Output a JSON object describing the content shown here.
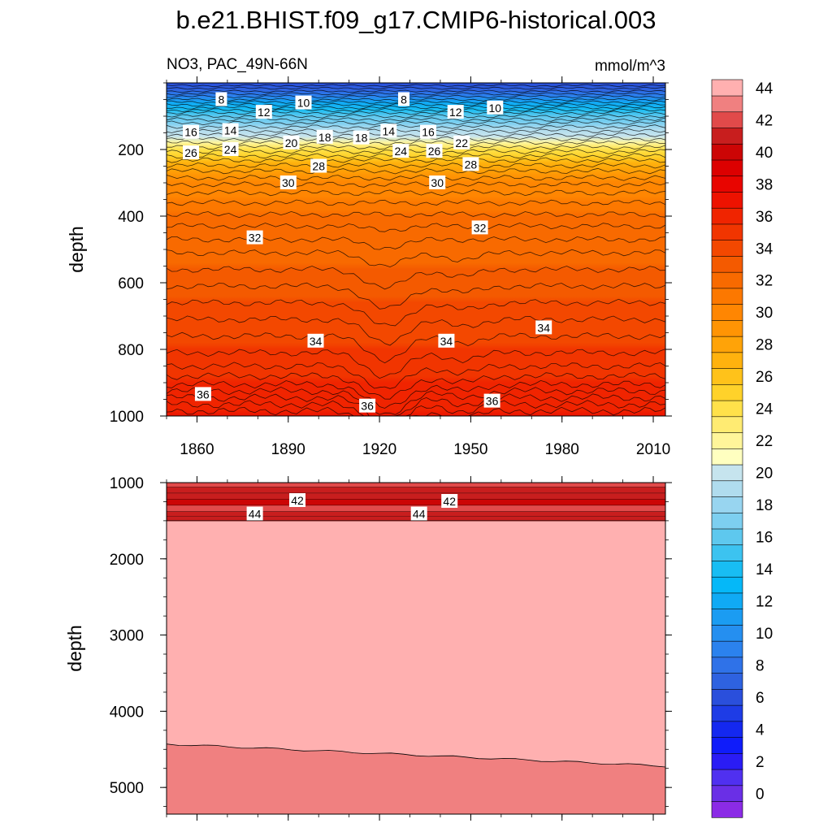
{
  "chart_data": {
    "type": "heatmap",
    "title": "b.e21.BHIST.f09_g17.CMIP6-historical.003",
    "subtitle_left": "NO3, PAC_49N-66N",
    "subtitle_right": "mmol/m^3",
    "xlabel": "",
    "ylabel": "depth",
    "xlim": [
      1850,
      2014
    ],
    "x_ticks": [
      1860,
      1890,
      1920,
      1950,
      1980,
      2010
    ],
    "x_tick_labels": [
      "1860",
      "1890",
      "1920",
      "1950",
      "1980",
      "2010"
    ],
    "colorbar": {
      "min": -1,
      "max": 46,
      "step": 1,
      "tick_values": [
        0,
        2,
        4,
        6,
        8,
        10,
        12,
        14,
        16,
        18,
        20,
        22,
        24,
        26,
        28,
        30,
        32,
        34,
        36,
        38,
        40,
        42,
        44
      ],
      "tick_labels": [
        "0",
        "2",
        "4",
        "6",
        "8",
        "10",
        "12",
        "14",
        "16",
        "18",
        "20",
        "22",
        "24",
        "26",
        "28",
        "30",
        "32",
        "34",
        "36",
        "38",
        "40",
        "42",
        "44"
      ]
    },
    "panels": [
      {
        "name": "upper",
        "ylim": [
          0,
          1000
        ],
        "y_ticks": [
          200,
          400,
          600,
          800,
          1000
        ],
        "y_tick_labels": [
          "200",
          "400",
          "600",
          "800",
          "1000"
        ],
        "ylabel": "depth",
        "contour_labels": [
          {
            "text": "8",
            "year": 1868,
            "depth": 50
          },
          {
            "text": "10",
            "year": 1895,
            "depth": 60
          },
          {
            "text": "8",
            "year": 1928,
            "depth": 50
          },
          {
            "text": "12",
            "year": 1882,
            "depth": 88
          },
          {
            "text": "12",
            "year": 1945,
            "depth": 88
          },
          {
            "text": "10",
            "year": 1958,
            "depth": 75
          },
          {
            "text": "16",
            "year": 1858,
            "depth": 148
          },
          {
            "text": "14",
            "year": 1871,
            "depth": 143
          },
          {
            "text": "20",
            "year": 1891,
            "depth": 180
          },
          {
            "text": "18",
            "year": 1902,
            "depth": 163
          },
          {
            "text": "18",
            "year": 1914,
            "depth": 165
          },
          {
            "text": "14",
            "year": 1923,
            "depth": 145
          },
          {
            "text": "16",
            "year": 1936,
            "depth": 148
          },
          {
            "text": "22",
            "year": 1947,
            "depth": 180
          },
          {
            "text": "26",
            "year": 1858,
            "depth": 210
          },
          {
            "text": "24",
            "year": 1871,
            "depth": 200
          },
          {
            "text": "24",
            "year": 1927,
            "depth": 205
          },
          {
            "text": "26",
            "year": 1938,
            "depth": 205
          },
          {
            "text": "28",
            "year": 1900,
            "depth": 250
          },
          {
            "text": "28",
            "year": 1950,
            "depth": 245
          },
          {
            "text": "30",
            "year": 1890,
            "depth": 300
          },
          {
            "text": "30",
            "year": 1939,
            "depth": 300
          },
          {
            "text": "32",
            "year": 1879,
            "depth": 465
          },
          {
            "text": "32",
            "year": 1953,
            "depth": 435
          },
          {
            "text": "34",
            "year": 1899,
            "depth": 775
          },
          {
            "text": "34",
            "year": 1942,
            "depth": 775
          },
          {
            "text": "34",
            "year": 1974,
            "depth": 735
          },
          {
            "text": "36",
            "year": 1862,
            "depth": 935
          },
          {
            "text": "36",
            "year": 1916,
            "depth": 970
          },
          {
            "text": "36",
            "year": 1957,
            "depth": 955
          }
        ]
      },
      {
        "name": "lower",
        "ylim": [
          1000,
          5350
        ],
        "y_ticks": [
          1000,
          2000,
          3000,
          4000,
          5000
        ],
        "y_tick_labels": [
          "1000",
          "2000",
          "3000",
          "4000",
          "5000"
        ],
        "ylabel": "depth",
        "contour_labels": [
          {
            "text": "42",
            "year": 1893,
            "depth": 1235
          },
          {
            "text": "42",
            "year": 1943,
            "depth": 1245
          },
          {
            "text": "44",
            "year": 1879,
            "depth": 1410
          },
          {
            "text": "44",
            "year": 1933,
            "depth": 1410
          }
        ]
      }
    ],
    "palette": [
      "#8b2be6",
      "#6a2fe6",
      "#5030f0",
      "#2a1cf5",
      "#0f1cfa",
      "#1428f0",
      "#1e3ce6",
      "#2a4fdc",
      "#2e62e0",
      "#2f72e8",
      "#2b82ee",
      "#258ff0",
      "#1b9cf2",
      "#10aaf4",
      "#05b8f8",
      "#18bdf3",
      "#3cc3f0",
      "#5ec8ee",
      "#7dcff0",
      "#98d5f0",
      "#b0dcee",
      "#c6e4ee",
      "#ffffc0",
      "#fff59a",
      "#ffeb72",
      "#ffe14a",
      "#ffd22a",
      "#ffc21a",
      "#ffb20e",
      "#ffa308",
      "#ff9404",
      "#ff8602",
      "#fc7800",
      "#f86a00",
      "#f45a00",
      "#f34800",
      "#f13500",
      "#f02400",
      "#ed1200",
      "#e80500",
      "#dc0000",
      "#cc0505",
      "#c81e1e",
      "#e14a4a",
      "#f08080",
      "#ffb0b0"
    ]
  }
}
